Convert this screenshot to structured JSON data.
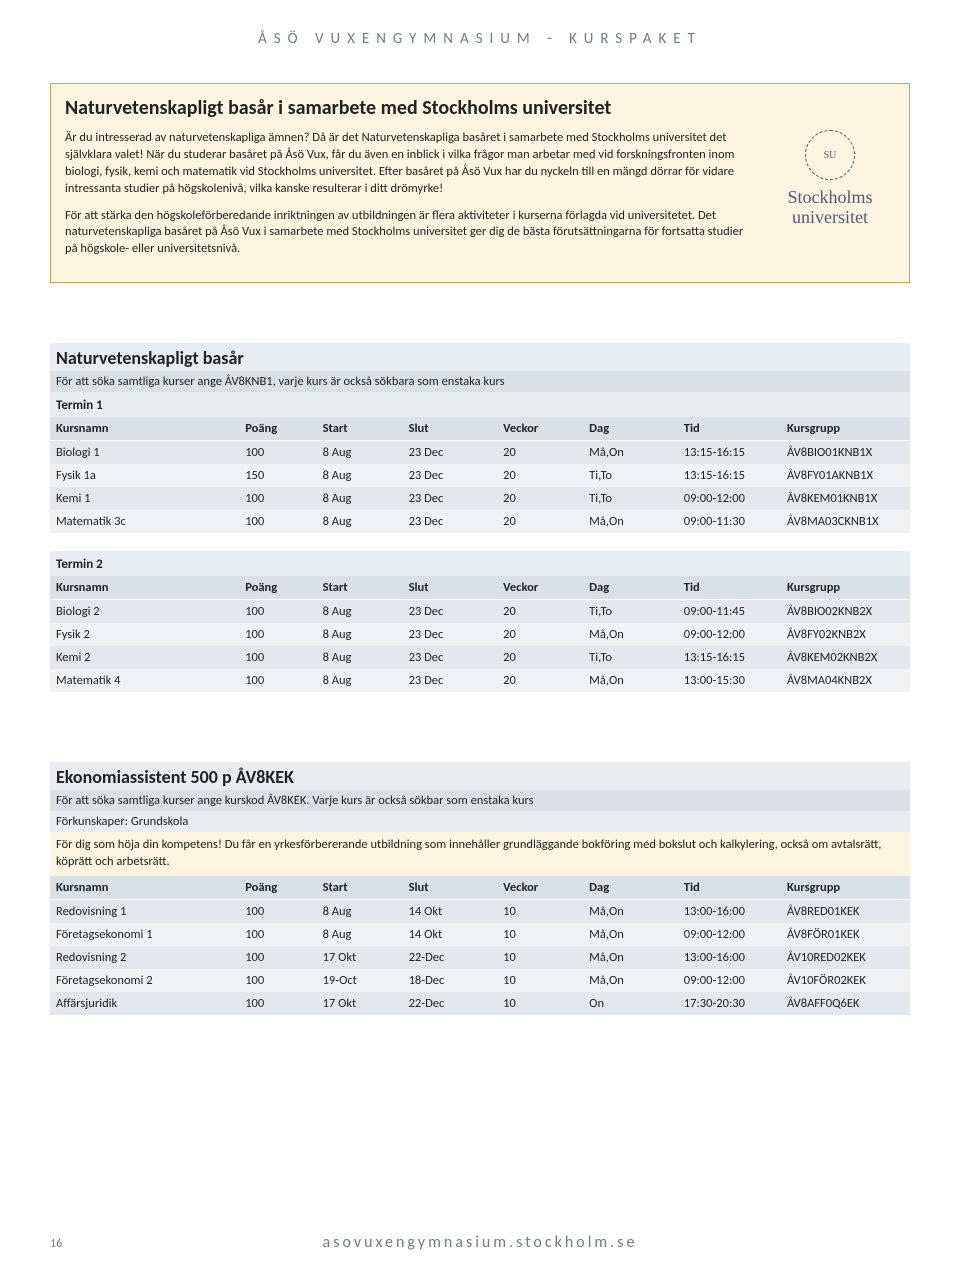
{
  "pageHeader": "ÅSÖ VUXENGYMNASIUM - KURSPAKET",
  "intro": {
    "title": "Naturvetenskapligt basår i samarbete med Stockholms universitet",
    "p1": "Är du intresserad av naturvetenskapliga ämnen? Då är det Naturvetenskapliga basåret i samarbete med Stockholms universitet det självklara valet! När du studerar basåret på Åsö Vux, får du även en inblick i vilka frågor man arbetar med vid forskningsfronten inom biologi, fysik, kemi och matematik vid Stockholms universitet. Efter basåret på Åsö Vux har du nyckeln till en mängd dörrar för vidare intressanta studier på högskolenivå, vilka kanske resulterar i ditt drömyrke!",
    "p2": "För att stärka den högskoleförberedande inriktningen av utbildningen är flera aktiviteter i kurserna förlagda vid universitetet. Det naturvetenskapliga basåret på Åsö Vux i samarbete med Stockholms universitet ger dig de bästa förutsättningarna för fortsatta studier på högskole- eller universitetsnivå.",
    "logoLine1": "Stockholms",
    "logoLine2": "universitet"
  },
  "headers": {
    "name": "Kursnamn",
    "pts": "Poäng",
    "start": "Start",
    "end": "Slut",
    "wk": "Veckor",
    "day": "Dag",
    "time": "Tid",
    "grp": "Kursgrupp"
  },
  "sec1": {
    "title": "Naturvetenskapligt basår",
    "sub": "För att söka samtliga kurser ange ÅV8KNB1, varje kurs är också sökbara som enstaka kurs",
    "term1": "Termin 1",
    "t1rows": [
      [
        "Biologi 1",
        "100",
        "8 Aug",
        "23 Dec",
        "20",
        "Må,On",
        "13:15-16:15",
        "ÅV8BIO01KNB1X"
      ],
      [
        "Fysik 1a",
        "150",
        "8 Aug",
        "23 Dec",
        "20",
        "Ti,To",
        "13:15-16:15",
        "ÅV8FY01AKNB1X"
      ],
      [
        "Kemi 1",
        "100",
        "8 Aug",
        "23 Dec",
        "20",
        "Ti,To",
        "09:00-12:00",
        "ÅV8KEM01KNB1X"
      ],
      [
        "Matematik 3c",
        "100",
        "8 Aug",
        "23 Dec",
        "20",
        "Må,On",
        "09:00-11:30",
        "ÅV8MA03CKNB1X"
      ]
    ],
    "term2": "Termin 2",
    "t2rows": [
      [
        "Biologi 2",
        "100",
        "8 Aug",
        "23 Dec",
        "20",
        "Ti,To",
        "09:00-11:45",
        "ÅV8BIO02KNB2X"
      ],
      [
        "Fysik 2",
        "100",
        "8 Aug",
        "23 Dec",
        "20",
        "Må,On",
        "09:00-12:00",
        "ÅV8FY02KNB2X"
      ],
      [
        "Kemi 2",
        "100",
        "8 Aug",
        "23 Dec",
        "20",
        "Ti,To",
        "13:15-16:15",
        "ÅV8KEM02KNB2X"
      ],
      [
        "Matematik 4",
        "100",
        "8 Aug",
        "23 Dec",
        "20",
        "Må,On",
        "13:00-15:30",
        "ÅV8MA04KNB2X"
      ]
    ]
  },
  "sec2": {
    "title": "Ekonomiassistent 500 p ÅV8KEK",
    "sub": "För att söka samtliga kurser ange kurskod ÅV8KEK. Varje kurs är också sökbar som enstaka kurs",
    "prereq": "Förkunskaper: Grundskola",
    "info": "För dig som höja din kompetens! Du får en yrkesförbererande utbildning som innehåller grundläggande bokföring med bokslut och kalkylering, också om avtalsrätt, köprätt och arbetsrätt.",
    "rows": [
      [
        "Redovisning 1",
        "100",
        "8 Aug",
        "14 Okt",
        "10",
        "Må,On",
        "13:00-16:00",
        "ÅV8RED01KEK"
      ],
      [
        "Företagsekonomi 1",
        "100",
        "8 Aug",
        "14 Okt",
        "10",
        "Må,On",
        "09:00-12:00",
        "ÅV8FÖR01KEK"
      ],
      [
        "Redovisning 2",
        "100",
        "17 Okt",
        "22-Dec",
        "10",
        "Må,On",
        "13:00-16:00",
        "ÅV10RED02KEK"
      ],
      [
        "Företagsekonomi 2",
        "100",
        "19-Oct",
        "18-Dec",
        "10",
        "Må,On",
        "09:00-12:00",
        "ÅV10FÖR02KEK"
      ],
      [
        "Affärsjuridik",
        "100",
        "17 Okt",
        "22-Dec",
        "10",
        "On",
        "17:30-20:30",
        "ÅV8AFF0Q6EK"
      ]
    ]
  },
  "footer": {
    "page": "16",
    "url": "asovuxengymnasium.stockholm.se"
  },
  "colors": {
    "headerText": "#6b7c8f",
    "boxBorder": "#c8a860",
    "boxBg": "#fdf5e0",
    "bandLight": "#e8edf1",
    "bandMid": "#d8e1e8",
    "stripeA": "#e2e8ed",
    "stripeB": "#f0f3f6"
  }
}
